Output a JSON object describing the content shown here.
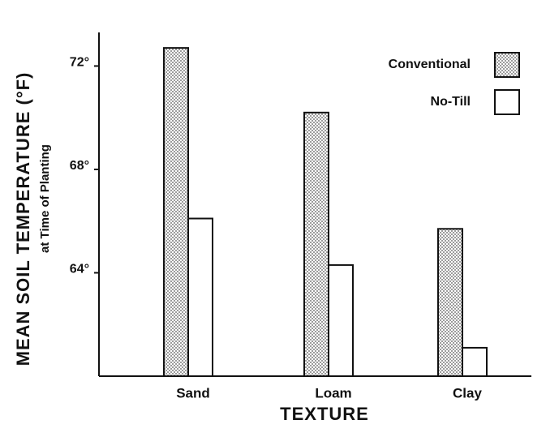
{
  "chart_data": {
    "type": "bar",
    "ylabel": "MEAN SOIL TEMPERATURE (°F)",
    "ylabel_sub": "at Time of Planting",
    "xlabel": "TEXTURE",
    "categories": [
      "Sand",
      "Loam",
      "Clay"
    ],
    "series": [
      {
        "name": "Conventional",
        "color": "#555555",
        "pattern": "dots",
        "values": [
          72.7,
          70.2,
          65.7
        ]
      },
      {
        "name": "No-Till",
        "color": "#ffffff",
        "values": [
          66.1,
          64.3,
          61.1
        ]
      }
    ],
    "ylim": [
      60,
      73.3
    ],
    "yticks": [
      {
        "value": 64,
        "label": "64°"
      },
      {
        "value": 68,
        "label": "68°"
      },
      {
        "value": 72,
        "label": "72°"
      }
    ],
    "legend": "upper right"
  }
}
